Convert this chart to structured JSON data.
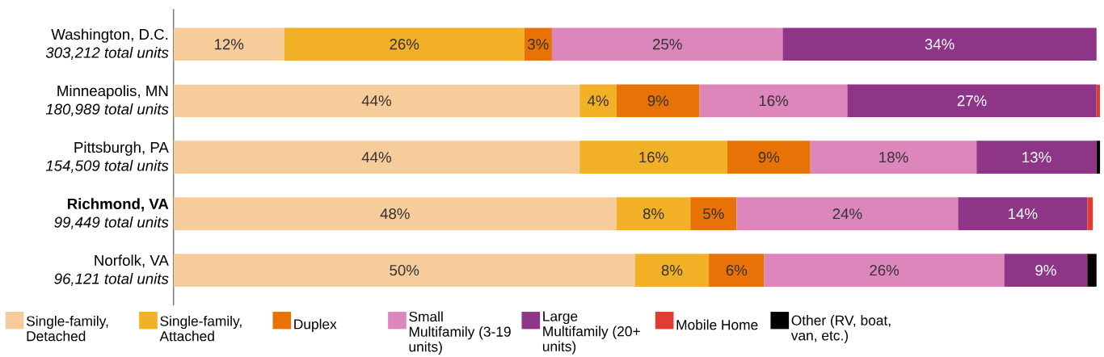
{
  "chart_data": {
    "type": "bar",
    "orientation": "horizontal",
    "stacked": true,
    "categories": [
      "Washington, D.C.",
      "Minneapolis, MN",
      "Pittsburgh, PA",
      "**Richmond, VA**",
      "Norfolk, VA"
    ],
    "legend": "bottom",
    "annotations": [
      "*303,212 total units*",
      "*180,989 total units*",
      "*154,509 total units*",
      "*99,449 total units*",
      "*96,121 total units*"
    ],
    "series": [
      {
        "name": "Single-family, Detached",
        "color": "#f5cc9a",
        "values": [
          12,
          44,
          44,
          48,
          50
        ],
        "value_labels": [
          "12%",
          "44%",
          "44%",
          "48%",
          "50%"
        ]
      },
      {
        "name": "Single-family, Attached",
        "color": "#f2b027",
        "values": [
          26,
          4,
          16,
          8,
          8
        ],
        "value_labels": [
          "26%",
          "4%",
          "16%",
          "8%",
          "8%"
        ]
      },
      {
        "name": "Duplex",
        "color": "#e87206",
        "values": [
          3,
          9,
          9,
          5,
          6
        ],
        "value_labels": [
          "3%",
          "9%",
          "9%",
          "5%",
          "6%"
        ]
      },
      {
        "name": "Small Multifamily (3-19 units)",
        "color": "#dc86bb",
        "values": [
          25,
          16,
          18,
          24,
          26
        ],
        "value_labels": [
          "25%",
          "16%",
          "18%",
          "24%",
          "26%"
        ]
      },
      {
        "name": "Large Multifamily (20+ units)",
        "color": "#8e3588",
        "values": [
          34,
          27,
          13,
          14,
          9
        ],
        "value_labels": [
          "34%",
          "27%",
          "13%",
          "14%",
          "9%"
        ]
      },
      {
        "name": "Mobile Home",
        "color": "#e03c31",
        "values": [
          null,
          0.4,
          null,
          0.6,
          null
        ],
        "value_labels": [
          null,
          null,
          null,
          null,
          null
        ]
      },
      {
        "name": "Other (RV, boat, van, etc.)",
        "color": "#000000",
        "values": [
          null,
          null,
          0.4,
          null,
          1.0
        ],
        "value_labels": [
          null,
          null,
          null,
          null,
          null
        ]
      }
    ]
  }
}
